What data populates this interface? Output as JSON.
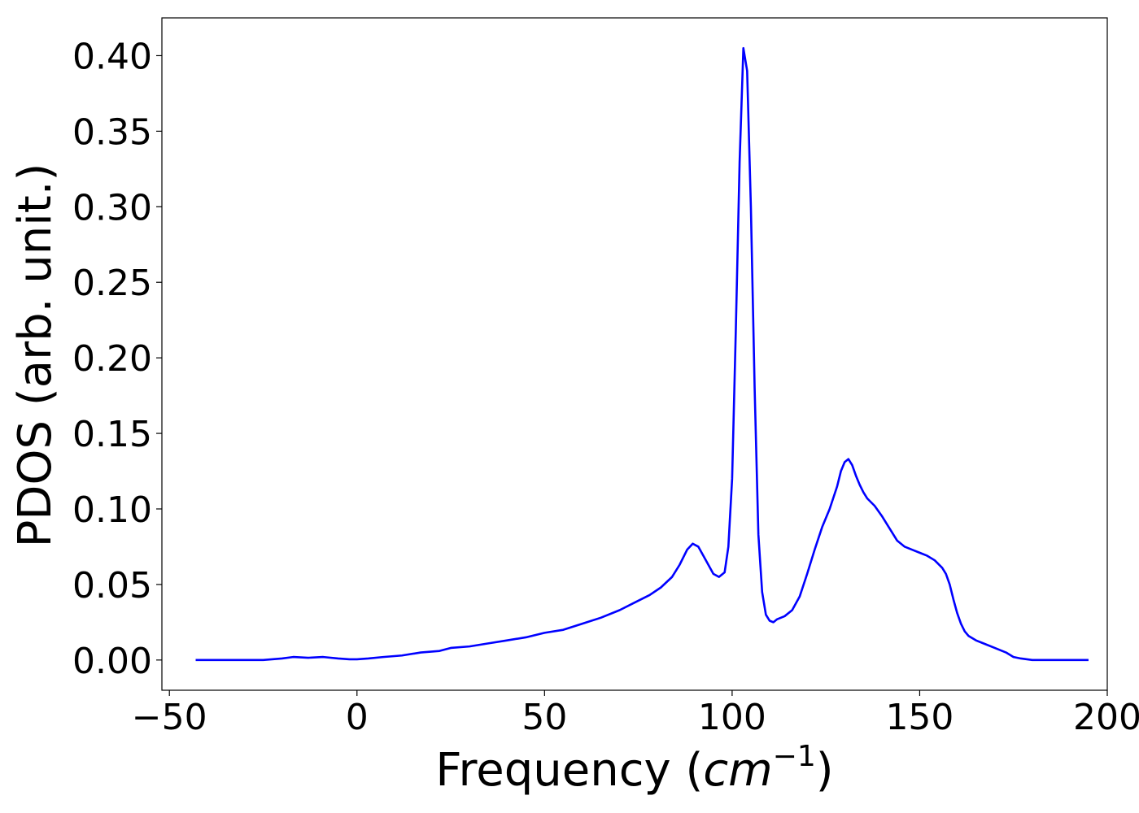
{
  "chart_data": {
    "type": "line",
    "title": "",
    "xlabel_text": "Frequency (",
    "xlabel_math": "cm",
    "xlabel_sup": "−1",
    "xlabel_close": ")",
    "ylabel": "PDOS (arb. unit.)",
    "xlim": [
      -52,
      200
    ],
    "ylim": [
      -0.02,
      0.425
    ],
    "xticks": [
      -50,
      0,
      50,
      100,
      150,
      200
    ],
    "xtick_labels": [
      "−50",
      "0",
      "50",
      "100",
      "150",
      "200"
    ],
    "yticks": [
      0.0,
      0.05,
      0.1,
      0.15,
      0.2,
      0.25,
      0.3,
      0.35,
      0.4
    ],
    "ytick_labels": [
      "0.00",
      "0.05",
      "0.10",
      "0.15",
      "0.20",
      "0.25",
      "0.30",
      "0.35",
      "0.40"
    ],
    "grid": false,
    "legend": "none",
    "series": [
      {
        "color": "#0000ff",
        "x": [
          -43,
          -35,
          -25,
          -20,
          -17,
          -13,
          -9,
          -5,
          -2,
          0,
          3,
          7,
          12,
          17,
          22,
          25,
          30,
          35,
          40,
          45,
          50,
          55,
          60,
          65,
          70,
          74,
          78,
          81,
          84,
          86,
          88,
          89.5,
          91,
          93,
          95,
          96.5,
          98,
          99,
          100,
          101,
          102,
          103,
          104,
          105,
          106,
          107,
          108,
          109,
          110,
          111,
          112,
          114,
          116,
          118,
          120,
          122,
          124,
          126,
          128,
          129,
          130,
          131,
          132,
          133,
          134,
          135,
          136,
          138,
          140,
          142,
          144,
          146,
          148,
          150,
          152,
          154,
          156,
          157,
          158,
          159,
          160,
          161,
          162,
          163,
          165,
          167,
          170,
          173,
          175,
          177,
          180,
          185,
          190,
          195
        ],
        "y": [
          0.0,
          0.0,
          0.0,
          0.001,
          0.002,
          0.0015,
          0.002,
          0.001,
          0.0005,
          0.0005,
          0.001,
          0.002,
          0.003,
          0.005,
          0.006,
          0.008,
          0.009,
          0.011,
          0.013,
          0.015,
          0.018,
          0.02,
          0.024,
          0.028,
          0.033,
          0.038,
          0.043,
          0.048,
          0.055,
          0.063,
          0.073,
          0.077,
          0.075,
          0.066,
          0.057,
          0.055,
          0.058,
          0.075,
          0.12,
          0.22,
          0.33,
          0.405,
          0.39,
          0.3,
          0.18,
          0.083,
          0.045,
          0.03,
          0.026,
          0.025,
          0.027,
          0.029,
          0.033,
          0.042,
          0.057,
          0.073,
          0.088,
          0.1,
          0.115,
          0.125,
          0.131,
          0.133,
          0.129,
          0.122,
          0.116,
          0.111,
          0.107,
          0.102,
          0.095,
          0.087,
          0.079,
          0.075,
          0.073,
          0.071,
          0.069,
          0.066,
          0.061,
          0.057,
          0.05,
          0.04,
          0.031,
          0.024,
          0.019,
          0.016,
          0.013,
          0.011,
          0.008,
          0.005,
          0.002,
          0.001,
          0.0,
          0.0,
          0.0,
          0.0
        ]
      }
    ]
  }
}
